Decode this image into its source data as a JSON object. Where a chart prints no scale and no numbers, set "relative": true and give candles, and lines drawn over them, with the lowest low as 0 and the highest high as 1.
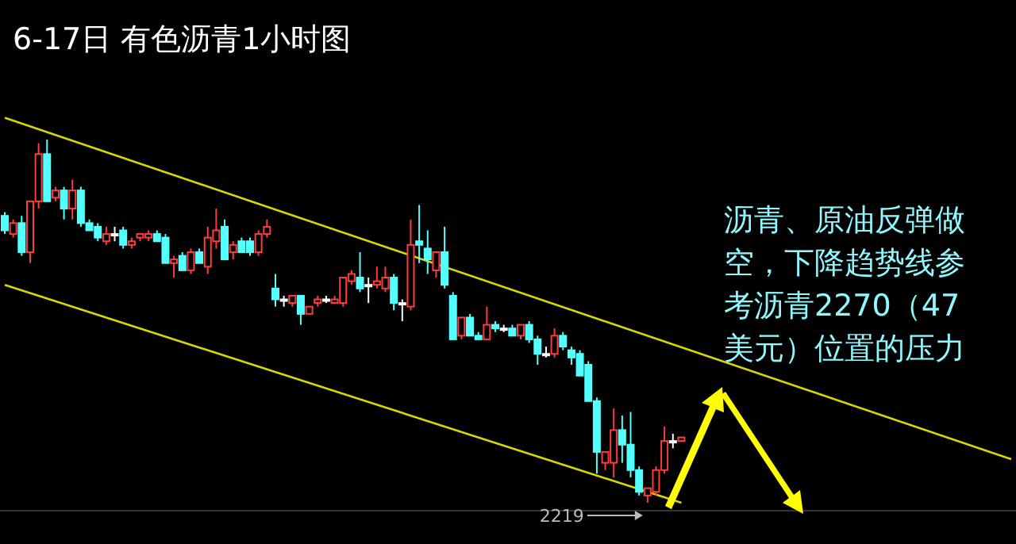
{
  "chart_data": {
    "type": "candlestick",
    "title": "6-17日 有色沥青1小时图",
    "relative": true,
    "categories": [
      null,
      null,
      null,
      null,
      null,
      null,
      null,
      null,
      null,
      null,
      null,
      null,
      null,
      null,
      null,
      null,
      null,
      null,
      null,
      null,
      null,
      null,
      null,
      null,
      null,
      null,
      null,
      null,
      null,
      null,
      null,
      null,
      null,
      null,
      null,
      null,
      null,
      null,
      null,
      null,
      null,
      null,
      null,
      null,
      null,
      null,
      null,
      null,
      null,
      null,
      null,
      null,
      null,
      null,
      null,
      null,
      null,
      null,
      null,
      null,
      null,
      null,
      null,
      null,
      null,
      null,
      null,
      null,
      null,
      null,
      null,
      null,
      null,
      null,
      null,
      null,
      null,
      null,
      null,
      null,
      null,
      null,
      null,
      null,
      null,
      null,
      null,
      null,
      null,
      null,
      null,
      null,
      null,
      null,
      null,
      null,
      null,
      null,
      null,
      null,
      null,
      null,
      null,
      null,
      null,
      null,
      null,
      null,
      null,
      null,
      null,
      null,
      null,
      null,
      null,
      null,
      null,
      null,
      null,
      null
    ],
    "ohlc": [
      [
        0.79,
        0.8,
        0.74,
        0.75
      ],
      [
        0.74,
        0.78,
        0.73,
        0.77
      ],
      [
        0.77,
        0.79,
        0.68,
        0.69
      ],
      [
        0.69,
        0.83,
        0.66,
        0.83
      ],
      [
        0.83,
        0.99,
        0.81,
        0.96
      ],
      [
        0.96,
        1.0,
        0.83,
        0.83
      ],
      [
        0.84,
        0.87,
        0.83,
        0.86
      ],
      [
        0.86,
        0.87,
        0.78,
        0.81
      ],
      [
        0.81,
        0.89,
        0.78,
        0.86
      ],
      [
        0.86,
        0.87,
        0.76,
        0.77
      ],
      [
        0.77,
        0.78,
        0.75,
        0.75
      ],
      [
        0.76,
        0.77,
        0.72,
        0.73
      ],
      [
        0.72,
        0.76,
        0.71,
        0.74
      ],
      [
        0.74,
        0.76,
        0.72,
        0.74
      ],
      [
        0.75,
        0.76,
        0.7,
        0.71
      ],
      [
        0.71,
        0.73,
        0.7,
        0.72
      ],
      [
        0.73,
        0.74,
        0.72,
        0.74
      ],
      [
        0.73,
        0.75,
        0.72,
        0.74
      ],
      [
        0.74,
        0.75,
        0.72,
        0.72
      ],
      [
        0.73,
        0.74,
        0.66,
        0.66
      ],
      [
        0.66,
        0.68,
        0.62,
        0.67
      ],
      [
        0.68,
        0.69,
        0.64,
        0.64
      ],
      [
        0.64,
        0.7,
        0.63,
        0.69
      ],
      [
        0.69,
        0.7,
        0.66,
        0.66
      ],
      [
        0.65,
        0.76,
        0.63,
        0.73
      ],
      [
        0.72,
        0.81,
        0.7,
        0.75
      ],
      [
        0.76,
        0.78,
        0.67,
        0.67
      ],
      [
        0.69,
        0.72,
        0.67,
        0.71
      ],
      [
        0.72,
        0.73,
        0.69,
        0.69
      ],
      [
        0.72,
        0.73,
        0.68,
        0.69
      ],
      [
        0.69,
        0.75,
        0.68,
        0.74
      ],
      [
        0.74,
        0.78,
        0.73,
        0.76
      ],
      [
        0.59,
        0.63,
        0.54,
        0.56
      ],
      [
        0.56,
        0.57,
        0.54,
        0.56
      ],
      [
        0.55,
        0.57,
        0.54,
        0.57
      ],
      [
        0.57,
        0.57,
        0.49,
        0.52
      ],
      [
        0.52,
        0.54,
        0.52,
        0.54
      ],
      [
        0.55,
        0.57,
        0.54,
        0.56
      ],
      [
        0.56,
        0.57,
        0.55,
        0.56
      ],
      [
        0.55,
        0.57,
        0.55,
        0.56
      ],
      [
        0.55,
        0.62,
        0.54,
        0.62
      ],
      [
        0.61,
        0.64,
        0.6,
        0.63
      ],
      [
        0.62,
        0.69,
        0.58,
        0.59
      ],
      [
        0.6,
        0.62,
        0.55,
        0.6
      ],
      [
        0.6,
        0.65,
        0.59,
        0.61
      ],
      [
        0.59,
        0.65,
        0.58,
        0.62
      ],
      [
        0.62,
        0.63,
        0.53,
        0.55
      ],
      [
        0.55,
        0.56,
        0.5,
        0.55
      ],
      [
        0.54,
        0.78,
        0.53,
        0.71
      ],
      [
        0.72,
        0.82,
        0.66,
        0.71
      ],
      [
        0.7,
        0.75,
        0.63,
        0.67
      ],
      [
        0.64,
        0.69,
        0.62,
        0.69
      ],
      [
        0.69,
        0.76,
        0.59,
        0.6
      ],
      [
        0.57,
        0.58,
        0.45,
        0.45
      ],
      [
        0.46,
        0.51,
        0.45,
        0.51
      ],
      [
        0.51,
        0.52,
        0.46,
        0.46
      ],
      [
        0.46,
        0.47,
        0.45,
        0.45
      ],
      [
        0.45,
        0.54,
        0.45,
        0.49
      ],
      [
        0.49,
        0.5,
        0.47,
        0.48
      ],
      [
        0.48,
        0.49,
        0.47,
        0.48
      ],
      [
        0.48,
        0.49,
        0.46,
        0.46
      ],
      [
        0.46,
        0.49,
        0.45,
        0.49
      ],
      [
        0.49,
        0.5,
        0.44,
        0.45
      ],
      [
        0.45,
        0.46,
        0.38,
        0.41
      ],
      [
        0.41,
        0.43,
        0.4,
        0.41
      ],
      [
        0.41,
        0.48,
        0.4,
        0.46
      ],
      [
        0.46,
        0.47,
        0.42,
        0.43
      ],
      [
        0.42,
        0.43,
        0.38,
        0.4
      ],
      [
        0.41,
        0.42,
        0.35,
        0.35
      ],
      [
        0.38,
        0.39,
        0.28,
        0.28
      ],
      [
        0.28,
        0.29,
        0.08,
        0.14
      ],
      [
        0.11,
        0.14,
        0.09,
        0.14
      ],
      [
        0.11,
        0.26,
        0.07,
        0.2
      ],
      [
        0.2,
        0.24,
        0.11,
        0.16
      ],
      [
        0.16,
        0.25,
        0.07,
        0.09
      ],
      [
        0.09,
        0.1,
        0.02,
        0.03
      ],
      [
        0.02,
        0.04,
        0.0,
        0.04
      ],
      [
        0.03,
        0.1,
        0.02,
        0.09
      ],
      [
        0.09,
        0.21,
        0.08,
        0.17
      ],
      [
        0.17,
        0.19,
        0.15,
        0.17
      ],
      [
        0.17,
        0.18,
        0.17,
        0.18
      ],
      null,
      null,
      null,
      null,
      null,
      null,
      null,
      null,
      null,
      null,
      null,
      null,
      null,
      null,
      null,
      null,
      null,
      null,
      null,
      null,
      null,
      null,
      null,
      null,
      null,
      null,
      null,
      null,
      null,
      null,
      null,
      null,
      null,
      null,
      null,
      null,
      null,
      null,
      null
    ],
    "colors": [
      "#54ffff",
      "#ff3c3c",
      "#54ffff",
      "#ff3c3c",
      "#ff3c3c",
      "#54ffff",
      "#ff3c3c",
      "#54ffff",
      "#ff3c3c",
      "#54ffff",
      "#54ffff",
      "#54ffff",
      "#ff3c3c",
      "#ffffff",
      "#54ffff",
      "#ff3c3c",
      "#ff3c3c",
      "#ff3c3c",
      "#54ffff",
      "#54ffff",
      "#ff3c3c",
      "#54ffff",
      "#ff3c3c",
      "#54ffff",
      "#ff3c3c",
      "#ff3c3c",
      "#54ffff",
      "#ff3c3c",
      "#54ffff",
      "#54ffff",
      "#ff3c3c",
      "#ff3c3c",
      "#54ffff",
      "#ffffff",
      "#ff3c3c",
      "#54ffff",
      "#ff3c3c",
      "#ff3c3c",
      "#ffffff",
      "#ff3c3c",
      "#ff3c3c",
      "#ff3c3c",
      "#54ffff",
      "#ffffff",
      "#ff3c3c",
      "#ff3c3c",
      "#54ffff",
      "#ffffff",
      "#ff3c3c",
      "#54ffff",
      "#54ffff",
      "#ff3c3c",
      "#54ffff",
      "#54ffff",
      "#ff3c3c",
      "#54ffff",
      "#54ffff",
      "#ff3c3c",
      "#54ffff",
      "#ffffff",
      "#54ffff",
      "#ff3c3c",
      "#54ffff",
      "#54ffff",
      "#ffffff",
      "#ff3c3c",
      "#54ffff",
      "#54ffff",
      "#54ffff",
      "#54ffff",
      "#54ffff",
      "#ff3c3c",
      "#ff3c3c",
      "#54ffff",
      "#54ffff",
      "#54ffff",
      "#ff3c3c",
      "#ff3c3c",
      "#ff3c3c",
      "#ffffff",
      "#ff3c3c",
      null,
      null,
      null,
      null,
      null,
      null,
      null,
      null,
      null,
      null,
      null,
      null,
      null,
      null,
      null,
      null,
      null,
      null,
      null,
      null,
      null,
      null,
      null,
      null,
      null,
      null,
      null,
      null,
      null,
      null,
      null,
      null,
      null,
      null,
      null,
      null,
      null,
      null,
      null
    ],
    "series": [
      {
        "type": "line",
        "color": "#d8d800",
        "values": [
          1.06,
          null,
          null,
          null,
          null,
          null,
          null,
          null,
          null,
          null,
          null,
          null,
          null,
          null,
          null,
          null,
          null,
          null,
          null,
          null,
          null,
          null,
          null,
          null,
          null,
          null,
          null,
          null,
          null,
          null,
          null,
          null,
          null,
          null,
          null,
          null,
          null,
          null,
          null,
          null,
          null,
          null,
          null,
          null,
          null,
          null,
          null,
          null,
          null,
          null,
          null,
          null,
          null,
          null,
          null,
          null,
          null,
          null,
          null,
          null,
          null,
          null,
          null,
          null,
          null,
          null,
          null,
          null,
          null,
          null,
          null,
          null,
          null,
          null,
          null,
          null,
          null,
          null,
          null,
          null,
          null,
          null,
          null,
          null,
          null,
          null,
          null,
          null,
          null,
          null,
          null,
          null,
          null,
          null,
          null,
          null,
          null,
          null,
          null,
          null,
          null,
          null,
          null,
          null,
          null,
          null,
          null,
          null,
          null,
          null,
          null,
          null,
          null,
          null,
          null,
          null,
          null,
          null,
          null,
          0.12
        ]
      },
      {
        "type": "line",
        "color": "#d8d800",
        "values": [
          0.6,
          null,
          null,
          null,
          null,
          null,
          null,
          null,
          null,
          null,
          null,
          null,
          null,
          null,
          null,
          null,
          null,
          null,
          null,
          null,
          null,
          null,
          null,
          null,
          null,
          null,
          null,
          null,
          null,
          null,
          null,
          null,
          null,
          null,
          null,
          null,
          null,
          null,
          null,
          null,
          null,
          null,
          null,
          null,
          null,
          null,
          null,
          null,
          null,
          null,
          null,
          null,
          null,
          null,
          null,
          null,
          null,
          null,
          null,
          null,
          null,
          null,
          null,
          null,
          null,
          null,
          null,
          null,
          null,
          null,
          null,
          null,
          null,
          null,
          null,
          null,
          null,
          null,
          null,
          null,
          0.0,
          null,
          null,
          null,
          null,
          null,
          null,
          null,
          null,
          null,
          null,
          null,
          null,
          null,
          null,
          null,
          null,
          null,
          null,
          null,
          null,
          null,
          null,
          null,
          null,
          null,
          null,
          null,
          null,
          null,
          null,
          null,
          null,
          null,
          null,
          null,
          null,
          null,
          null,
          null
        ]
      }
    ],
    "annotations": [
      "沥青、原油反弹做空，下降趋势线参考沥青2270（47美元）位置的压力",
      "2219"
    ]
  }
}
